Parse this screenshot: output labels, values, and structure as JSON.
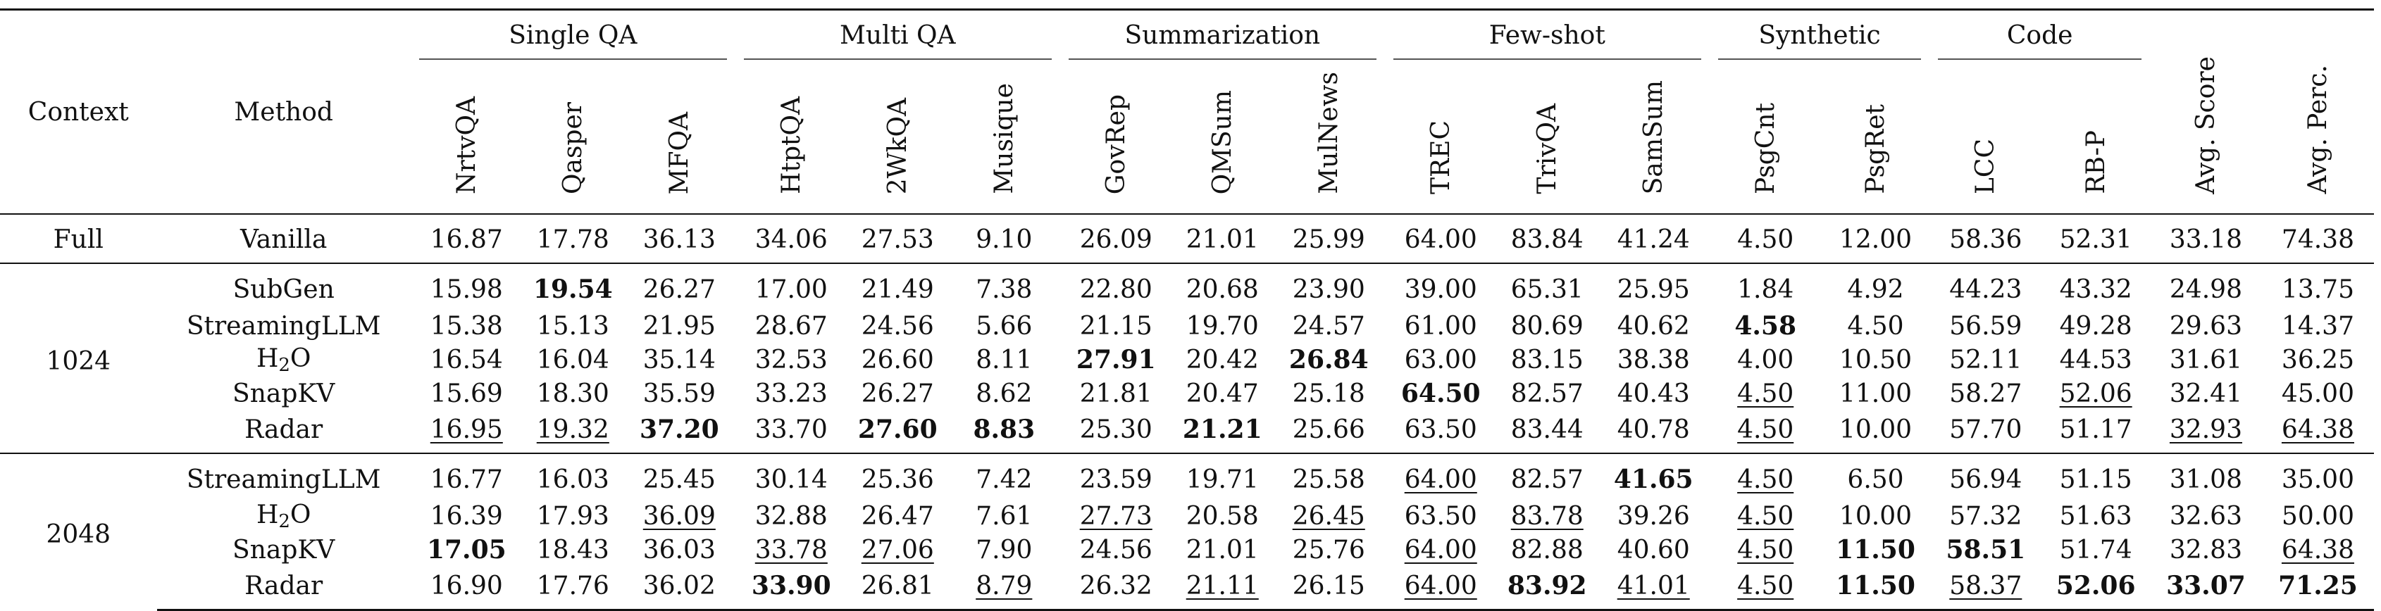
{
  "headers": {
    "context": "Context",
    "method": "Method",
    "groups": [
      "Single QA",
      "Multi QA",
      "Summarization",
      "Few-shot",
      "Synthetic",
      "Code"
    ],
    "columns": [
      "NrtvQA",
      "Qasper",
      "MFQA",
      "HtptQA",
      "2WkQA",
      "Musique",
      "GovRep",
      "QMSum",
      "MulNews",
      "TREC",
      "TrivQA",
      "SamSum",
      "PsgCnt",
      "PsgRet",
      "LCC",
      "RB-P",
      "Avg. Score",
      "Avg. Perc."
    ]
  },
  "sections": [
    {
      "context": "Full",
      "rows": [
        {
          "method": "Vanilla",
          "values": [
            "16.87",
            "17.78",
            "36.13",
            "34.06",
            "27.53",
            "9.10",
            "26.09",
            "21.01",
            "25.99",
            "64.00",
            "83.84",
            "41.24",
            "4.50",
            "12.00",
            "58.36",
            "52.31",
            "33.18",
            "74.38"
          ],
          "styles": [
            "",
            "",
            "",
            "",
            "",
            "",
            "",
            "",
            "",
            "",
            "",
            "",
            "",
            "",
            "",
            "",
            "",
            ""
          ]
        }
      ]
    },
    {
      "context": "1024",
      "rows": [
        {
          "method": "SubGen",
          "values": [
            "15.98",
            "19.54",
            "26.27",
            "17.00",
            "21.49",
            "7.38",
            "22.80",
            "20.68",
            "23.90",
            "39.00",
            "65.31",
            "25.95",
            "1.84",
            "4.92",
            "44.23",
            "43.32",
            "24.98",
            "13.75"
          ],
          "styles": [
            "",
            "b",
            "",
            "",
            "",
            "",
            "",
            "",
            "",
            "",
            "",
            "",
            "",
            "",
            "",
            "",
            "",
            ""
          ]
        },
        {
          "method": "StreamingLLM",
          "values": [
            "15.38",
            "15.13",
            "21.95",
            "28.67",
            "24.56",
            "5.66",
            "21.15",
            "19.70",
            "24.57",
            "61.00",
            "80.69",
            "40.62",
            "4.58",
            "4.50",
            "56.59",
            "49.28",
            "29.63",
            "14.37"
          ],
          "styles": [
            "",
            "",
            "",
            "",
            "",
            "",
            "",
            "",
            "",
            "",
            "",
            "",
            "b",
            "",
            "",
            "",
            "",
            ""
          ]
        },
        {
          "method": "H",
          "method_sub": "2",
          "method_tail": "O",
          "values": [
            "16.54",
            "16.04",
            "35.14",
            "32.53",
            "26.60",
            "8.11",
            "27.91",
            "20.42",
            "26.84",
            "63.00",
            "83.15",
            "38.38",
            "4.00",
            "10.50",
            "52.11",
            "44.53",
            "31.61",
            "36.25"
          ],
          "styles": [
            "",
            "",
            "",
            "",
            "",
            "",
            "b",
            "",
            "b",
            "",
            "",
            "",
            "",
            "",
            "",
            "",
            "",
            ""
          ]
        },
        {
          "method": "SnapKV",
          "values": [
            "15.69",
            "18.30",
            "35.59",
            "33.23",
            "26.27",
            "8.62",
            "21.81",
            "20.47",
            "25.18",
            "64.50",
            "82.57",
            "40.43",
            "4.50",
            "11.00",
            "58.27",
            "52.06",
            "32.41",
            "45.00"
          ],
          "styles": [
            "",
            "",
            "",
            "",
            "",
            "",
            "",
            "",
            "",
            "b",
            "",
            "",
            "u",
            "",
            "",
            "u",
            "",
            ""
          ]
        },
        {
          "method": "Radar",
          "values": [
            "16.95",
            "19.32",
            "37.20",
            "33.70",
            "27.60",
            "8.83",
            "25.30",
            "21.21",
            "25.66",
            "63.50",
            "83.44",
            "40.78",
            "4.50",
            "10.00",
            "57.70",
            "51.17",
            "32.93",
            "64.38"
          ],
          "styles": [
            "u",
            "u",
            "b",
            "",
            "b",
            "b",
            "",
            "b",
            "",
            "",
            "",
            "",
            "u",
            "",
            "",
            "",
            "u",
            "u"
          ]
        }
      ]
    },
    {
      "context": "2048",
      "rows": [
        {
          "method": "StreamingLLM",
          "values": [
            "16.77",
            "16.03",
            "25.45",
            "30.14",
            "25.36",
            "7.42",
            "23.59",
            "19.71",
            "25.58",
            "64.00",
            "82.57",
            "41.65",
            "4.50",
            "6.50",
            "56.94",
            "51.15",
            "31.08",
            "35.00"
          ],
          "styles": [
            "",
            "",
            "",
            "",
            "",
            "",
            "",
            "",
            "",
            "u",
            "",
            "b",
            "u",
            "",
            "",
            "",
            "",
            ""
          ]
        },
        {
          "method": "H",
          "method_sub": "2",
          "method_tail": "O",
          "values": [
            "16.39",
            "17.93",
            "36.09",
            "32.88",
            "26.47",
            "7.61",
            "27.73",
            "20.58",
            "26.45",
            "63.50",
            "83.78",
            "39.26",
            "4.50",
            "10.00",
            "57.32",
            "51.63",
            "32.63",
            "50.00"
          ],
          "styles": [
            "",
            "",
            "u",
            "",
            "",
            "",
            "u",
            "",
            "u",
            "",
            "u",
            "",
            "u",
            "",
            "",
            "",
            "",
            ""
          ]
        },
        {
          "method": "SnapKV",
          "values": [
            "17.05",
            "18.43",
            "36.03",
            "33.78",
            "27.06",
            "7.90",
            "24.56",
            "21.01",
            "25.76",
            "64.00",
            "82.88",
            "40.60",
            "4.50",
            "11.50",
            "58.51",
            "51.74",
            "32.83",
            "64.38"
          ],
          "styles": [
            "b",
            "",
            "",
            "u",
            "u",
            "",
            "",
            "",
            "",
            "u",
            "",
            "",
            "u",
            "b",
            "b",
            "",
            "",
            "u"
          ]
        },
        {
          "method": "Radar",
          "values": [
            "16.90",
            "17.76",
            "36.02",
            "33.90",
            "26.81",
            "8.79",
            "26.32",
            "21.11",
            "26.15",
            "64.00",
            "83.92",
            "41.01",
            "4.50",
            "11.50",
            "58.37",
            "52.06",
            "33.07",
            "71.25"
          ],
          "styles": [
            "",
            "",
            "",
            "b",
            "",
            "u",
            "",
            "u",
            "",
            "u",
            "b",
            "u",
            "u",
            "b",
            "u",
            "b",
            "b",
            "b"
          ]
        }
      ]
    }
  ]
}
